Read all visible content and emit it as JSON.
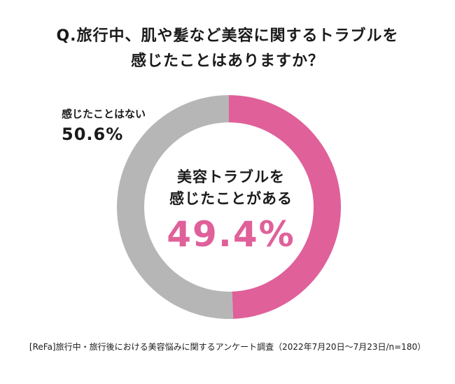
{
  "chart_data": {
    "type": "pie",
    "title": "Q.旅行中、肌や髪など美容に関するトラブルを感じたことはありますか？",
    "title_lines": [
      "Q.旅行中、肌や髪など美容に関するトラブルを",
      "感じたことはありますか？"
    ],
    "slices": [
      {
        "label": "美容トラブルを感じたことがある",
        "label_lines": [
          "美容トラブルを",
          "感じたことがある"
        ],
        "value": 49.4,
        "display": "49.4%",
        "color": "#e0609a"
      },
      {
        "label": "感じたことはない",
        "value": 50.6,
        "display": "50.6%",
        "color": "#b6b6b6"
      }
    ],
    "style": "donut",
    "start": "top, clockwise"
  },
  "source": "[ReFa]旅行中・旅行後における美容悩みに関するアンケート調査（2022年7月20日〜7月23日/n=180）"
}
